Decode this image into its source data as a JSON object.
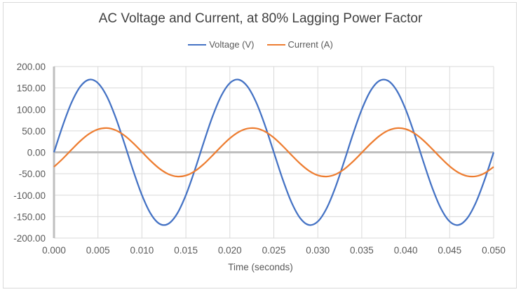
{
  "chart_data": {
    "type": "line",
    "title": "AC Voltage and Current, at 80% Lagging Power Factor",
    "xlabel": "Time (seconds)",
    "ylabel": "",
    "xlim": [
      0,
      0.05
    ],
    "ylim": [
      -200,
      200
    ],
    "x_ticks": [
      "0.000",
      "0.005",
      "0.010",
      "0.015",
      "0.020",
      "0.025",
      "0.030",
      "0.035",
      "0.040",
      "0.045",
      "0.050"
    ],
    "y_ticks": [
      "200.00",
      "150.00",
      "100.00",
      "50.00",
      "0.00",
      "-50.00",
      "-100.00",
      "-150.00",
      "-200.00"
    ],
    "grid": true,
    "legend_position": "top",
    "x": [
      0,
      0.001,
      0.002,
      0.003,
      0.004,
      0.005,
      0.006,
      0.007,
      0.008,
      0.009,
      0.01,
      0.011,
      0.012,
      0.013,
      0.014,
      0.015,
      0.016,
      0.017,
      0.018,
      0.019,
      0.02,
      0.021,
      0.022,
      0.023,
      0.024,
      0.025,
      0.026,
      0.027,
      0.028,
      0.029,
      0.03,
      0.031,
      0.032,
      0.033,
      0.034,
      0.035,
      0.036,
      0.037,
      0.038,
      0.039,
      0.04,
      0.041,
      0.042,
      0.043,
      0.044,
      0.045,
      0.046,
      0.047,
      0.048,
      0.049,
      0.05
    ],
    "series": [
      {
        "name": "Voltage (V)",
        "color": "#4472c4",
        "values": [
          0,
          62.5,
          116.2,
          153.5,
          169.4,
          161.4,
          130.8,
          81.8,
          21.3,
          -42.2,
          -99.7,
          -143.3,
          -166.7,
          -166.7,
          -143.3,
          -99.7,
          -42.2,
          21.3,
          81.8,
          130.8,
          161.4,
          169.4,
          153.5,
          116.2,
          62.5,
          0,
          -62.5,
          -116.2,
          -153.5,
          -169.4,
          -161.4,
          -130.8,
          -81.8,
          -21.3,
          42.2,
          99.7,
          143.3,
          166.7,
          166.7,
          143.3,
          99.7,
          42.2,
          -21.3,
          -81.8,
          -130.8,
          -161.4,
          -169.4,
          -153.5,
          -116.2,
          -62.5,
          0
        ]
      },
      {
        "name": "Current (A)",
        "color": "#ed7d31",
        "values": [
          -34.0,
          -14.9,
          6.2,
          26.5,
          43.1,
          53.6,
          56.5,
          51.6,
          39.4,
          21.6,
          0.9,
          -20.0,
          -38.1,
          -50.8,
          -56.4,
          -54.1,
          -44.2,
          -28.0,
          -7.9,
          13.2,
          32.6,
          47.3,
          55.4,
          55.8,
          48.3,
          34.0,
          14.9,
          -6.2,
          -26.5,
          -43.1,
          -53.6,
          -56.5,
          -51.6,
          -39.4,
          -21.6,
          -0.9,
          20.0,
          38.1,
          50.8,
          56.4,
          54.1,
          44.2,
          28.0,
          7.9,
          -13.2,
          -32.6,
          -47.3,
          -55.4,
          -55.8,
          -48.3,
          -34.0
        ]
      }
    ]
  }
}
